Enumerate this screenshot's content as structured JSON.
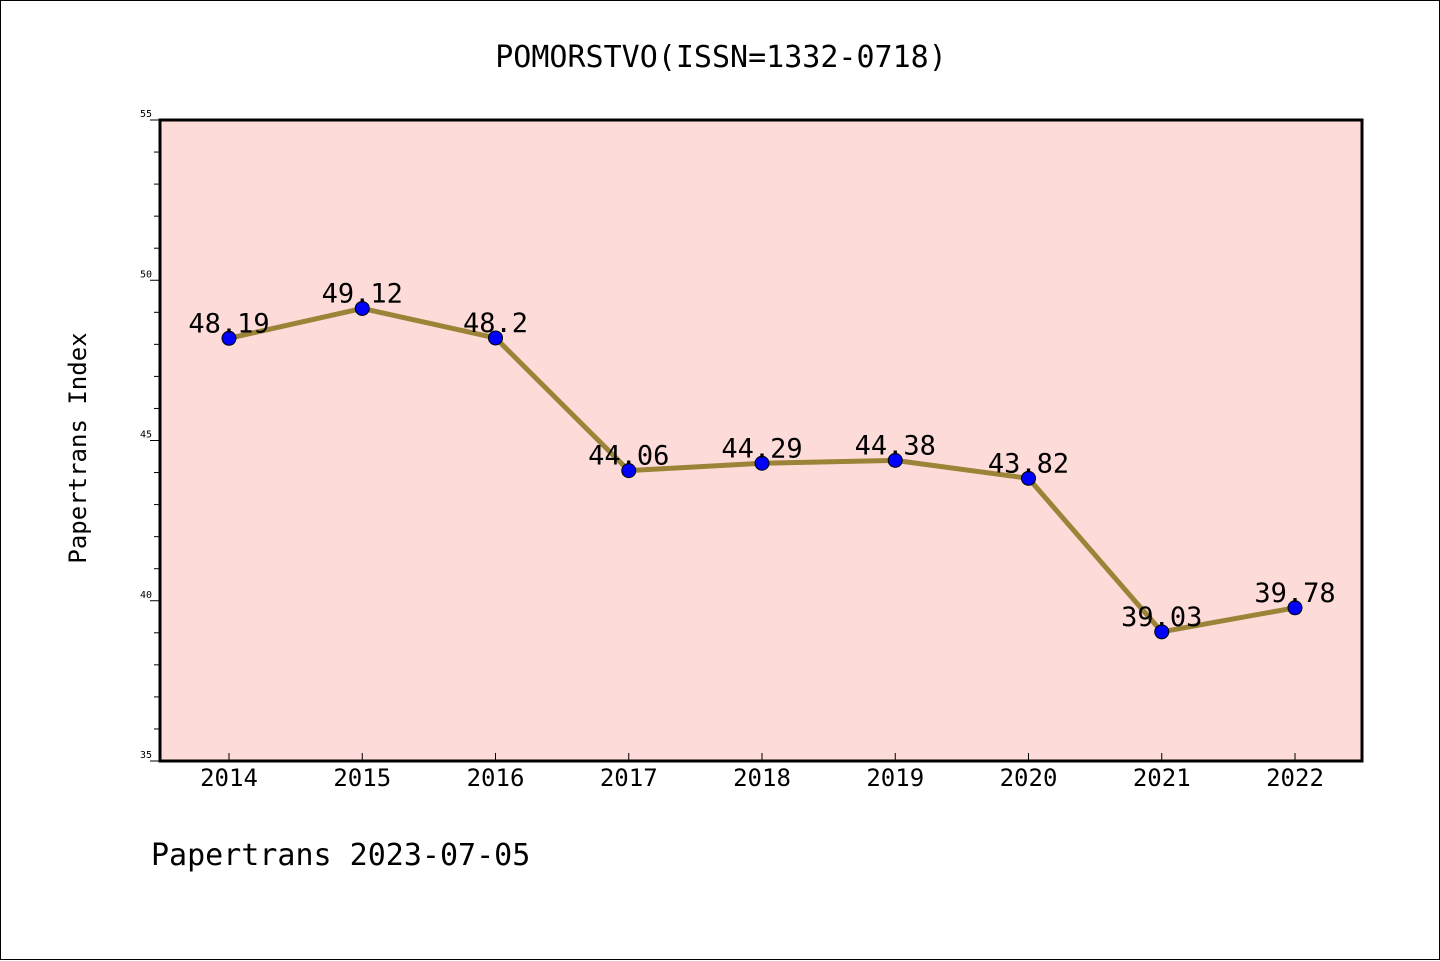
{
  "chart_data": {
    "type": "line",
    "title": "POMORSTVO(ISSN=1332-0718)",
    "ylabel": "Papertrans Index",
    "xlabel": "",
    "footer": "Papertrans 2023-07-05",
    "x": [
      "2014",
      "2015",
      "2016",
      "2017",
      "2018",
      "2019",
      "2020",
      "2021",
      "2022"
    ],
    "series": [
      {
        "values": [
          48.19,
          49.12,
          48.2,
          44.06,
          44.29,
          44.38,
          43.82,
          39.03,
          39.78
        ],
        "labels": [
          "48.19",
          "49.12",
          "48.2",
          "44.06",
          "44.29",
          "44.38",
          "43.82",
          "39.03",
          "39.78"
        ]
      }
    ],
    "yticks": [
      "35",
      "40",
      "45",
      "50",
      "55"
    ],
    "ylim": [
      35,
      55
    ],
    "grid": false,
    "colors": {
      "plot_background": "#fddbd8",
      "line": "#9b8438",
      "marker": "#0000ff",
      "axes": "#000000"
    }
  }
}
